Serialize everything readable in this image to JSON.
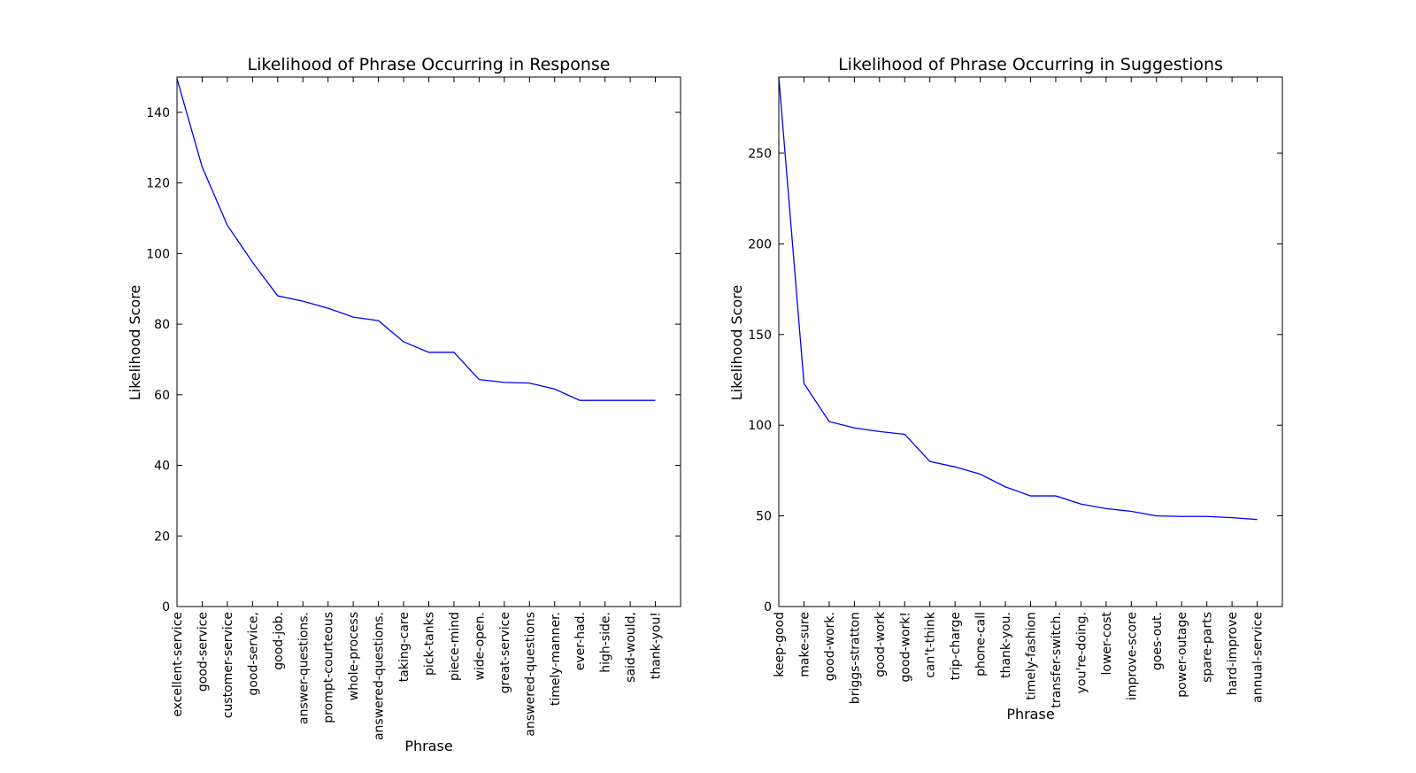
{
  "chart_data": [
    {
      "type": "line",
      "title": "Likelihood of Phrase Occurring in Response",
      "xlabel": "Phrase",
      "ylabel": "Likelihood Score",
      "ylim": [
        0,
        150
      ],
      "yticks": [
        0,
        20,
        40,
        60,
        80,
        100,
        120,
        140
      ],
      "grid": false,
      "color": "#0000ff",
      "categories": [
        "excellent-service",
        "good-service",
        "customer-service",
        "good-service,",
        "good-job.",
        "answer-questions.",
        "prompt-courteous",
        "whole-process",
        "answered-questions.",
        "taking-care",
        "pick-tanks",
        "piece-mind",
        "wide-open.",
        "great-service",
        "answered-questions",
        "timely-manner.",
        "ever-had.",
        "high-side.",
        "said-would,",
        "thank-you!"
      ],
      "values": [
        149.5,
        124.5,
        108,
        97.5,
        88,
        86.5,
        84.5,
        82,
        81,
        75,
        72,
        72,
        64.3,
        63.5,
        63.3,
        61.6,
        58.4,
        58.4,
        58.4,
        58.4
      ]
    },
    {
      "type": "line",
      "title": "Likelihood of Phrase Occurring in Suggestions",
      "xlabel": "Phrase",
      "ylabel": "Likelihood Score",
      "ylim": [
        0,
        292
      ],
      "yticks": [
        0,
        50,
        100,
        150,
        200,
        250
      ],
      "grid": false,
      "color": "#0000ff",
      "categories": [
        "keep-good",
        "make-sure",
        "good-work.",
        "briggs-stratton",
        "good-work",
        "good-work!",
        "can't-think",
        "trip-charge",
        "phone-call",
        "thank-you.",
        "timely-fashion",
        "transfer-switch.",
        "you're-doing.",
        "lower-cost",
        "improve-score",
        "goes-out.",
        "power-outage",
        "spare-parts",
        "hard-improve",
        "annual-service"
      ],
      "values": [
        292,
        123,
        102,
        98.5,
        96.5,
        95,
        80,
        77,
        73,
        66,
        61,
        61,
        56.5,
        54,
        52.5,
        50,
        49.7,
        49.7,
        49,
        48
      ]
    }
  ]
}
